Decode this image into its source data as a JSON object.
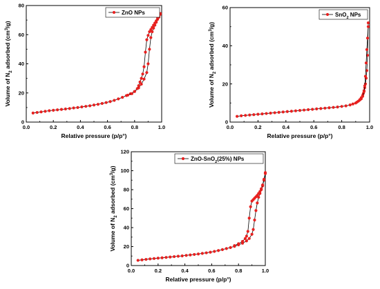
{
  "chart_data": [
    {
      "type": "line",
      "legend": "ZnO NPs",
      "legend_position": "top-right",
      "xlabel": "Relative pressure (p/p°)",
      "ylabel": "Volume of N₂ adsorbed (cm³/g)",
      "xlim": [
        0.0,
        1.0
      ],
      "ylim": [
        0,
        80
      ],
      "xticks": [
        0.0,
        0.2,
        0.4,
        0.6,
        0.8,
        1.0
      ],
      "yticks": [
        0,
        20,
        40,
        60,
        80
      ],
      "xtick_labels": [
        "0.0",
        "0.2",
        "0.4",
        "0.6",
        "0.8",
        "1.0"
      ],
      "ytick_labels": [
        "0",
        "20",
        "40",
        "60",
        "80"
      ],
      "series": [
        {
          "name": "ZnO NPs",
          "color": "#e8201f",
          "adsorption": {
            "x": [
              0.05,
              0.08,
              0.11,
              0.14,
              0.17,
              0.2,
              0.23,
              0.26,
              0.29,
              0.32,
              0.35,
              0.38,
              0.41,
              0.44,
              0.47,
              0.5,
              0.53,
              0.56,
              0.59,
              0.62,
              0.65,
              0.68,
              0.71,
              0.74,
              0.77,
              0.8,
              0.83,
              0.85,
              0.87,
              0.89,
              0.9,
              0.91,
              0.92,
              0.93,
              0.94,
              0.95,
              0.96,
              0.97,
              0.98,
              0.99
            ],
            "y": [
              6.2,
              6.6,
              7.0,
              7.4,
              7.8,
              8.1,
              8.4,
              8.7,
              9.0,
              9.3,
              9.7,
              10.0,
              10.4,
              10.8,
              11.2,
              11.7,
              12.2,
              12.8,
              13.4,
              14.1,
              14.9,
              15.9,
              17.0,
              18.2,
              19.5,
              21.0,
              23.5,
              26.0,
              29.5,
              34.0,
              40.0,
              50.0,
              58.0,
              62.0,
              64.5,
              66.5,
              68.5,
              70.5,
              72.0,
              74.0
            ]
          },
          "desorption": {
            "x": [
              0.99,
              0.98,
              0.97,
              0.96,
              0.95,
              0.94,
              0.93,
              0.92,
              0.91,
              0.9,
              0.89,
              0.88,
              0.87,
              0.86,
              0.85,
              0.84,
              0.83,
              0.82,
              0.8,
              0.78,
              0.75
            ],
            "y": [
              74.5,
              73.0,
              71.5,
              69.5,
              68.0,
              66.5,
              65.0,
              63.5,
              62.0,
              59.5,
              56.5,
              48.0,
              38.0,
              33.0,
              30.0,
              27.5,
              25.0,
              23.0,
              21.0,
              19.5,
              18.5
            ]
          }
        }
      ]
    },
    {
      "type": "line",
      "legend": "SnO₂ NPs",
      "legend_position": "top-right",
      "xlabel": "Relative pressure (p/p°)",
      "ylabel": "Volume of N₂ adsorbed (cm³/g)",
      "xlim": [
        0.0,
        1.0
      ],
      "ylim": [
        0,
        60
      ],
      "xticks": [
        0.0,
        0.2,
        0.4,
        0.6,
        0.8,
        1.0
      ],
      "yticks": [
        0,
        20,
        40,
        60
      ],
      "xtick_labels": [
        "0.0",
        "0.2",
        "0.4",
        "0.6",
        "0.8",
        "1.0"
      ],
      "ytick_labels": [
        "0",
        "20",
        "40",
        "60"
      ],
      "series": [
        {
          "name": "SnO₂ NPs",
          "color": "#e8201f",
          "adsorption": {
            "x": [
              0.05,
              0.08,
              0.11,
              0.14,
              0.17,
              0.2,
              0.23,
              0.26,
              0.29,
              0.32,
              0.35,
              0.38,
              0.41,
              0.44,
              0.47,
              0.5,
              0.53,
              0.56,
              0.59,
              0.62,
              0.65,
              0.68,
              0.71,
              0.74,
              0.77,
              0.8,
              0.83,
              0.86,
              0.88,
              0.9,
              0.91,
              0.92,
              0.93,
              0.94,
              0.95,
              0.955,
              0.96,
              0.965,
              0.97,
              0.975,
              0.98,
              0.985,
              0.99
            ],
            "y": [
              3.0,
              3.3,
              3.5,
              3.7,
              3.9,
              4.1,
              4.3,
              4.5,
              4.7,
              4.9,
              5.1,
              5.3,
              5.5,
              5.7,
              5.9,
              6.1,
              6.3,
              6.5,
              6.7,
              6.9,
              7.1,
              7.3,
              7.5,
              7.7,
              7.9,
              8.2,
              8.5,
              9.0,
              9.5,
              10.0,
              10.5,
              11.0,
              11.8,
              12.8,
              14.0,
              15.0,
              16.5,
              18.0,
              20.0,
              23.0,
              27.0,
              35.0,
              52.0
            ]
          },
          "desorption": {
            "x": [
              0.99,
              0.985,
              0.98,
              0.975,
              0.97,
              0.965,
              0.96,
              0.95,
              0.94,
              0.93
            ],
            "y": [
              50.0,
              44.0,
              38.0,
              31.0,
              24.0,
              19.0,
              16.0,
              13.5,
              12.2,
              11.6
            ]
          }
        }
      ]
    },
    {
      "type": "line",
      "legend": "ZnO-SnO₂(25%) NPs",
      "legend_position": "top-right",
      "xlabel": "Relative pressure (p/p°)",
      "ylabel": "Volume of N₂ adsorbed (cm³/g)",
      "xlim": [
        0.0,
        1.0
      ],
      "ylim": [
        0,
        120
      ],
      "xticks": [
        0.0,
        0.2,
        0.4,
        0.6,
        0.8,
        1.0
      ],
      "yticks": [
        0,
        20,
        40,
        60,
        80,
        100,
        120
      ],
      "xtick_labels": [
        "0.0",
        "0.2",
        "0.4",
        "0.6",
        "0.8",
        "1.0"
      ],
      "ytick_labels": [
        "0",
        "20",
        "40",
        "60",
        "80",
        "100",
        "120"
      ],
      "series": [
        {
          "name": "ZnO-SnO₂(25%) NPs",
          "color": "#e8201f",
          "adsorption": {
            "x": [
              0.05,
              0.08,
              0.11,
              0.14,
              0.17,
              0.2,
              0.23,
              0.26,
              0.29,
              0.32,
              0.35,
              0.38,
              0.41,
              0.44,
              0.47,
              0.5,
              0.53,
              0.56,
              0.59,
              0.62,
              0.65,
              0.68,
              0.71,
              0.74,
              0.77,
              0.8,
              0.83,
              0.86,
              0.88,
              0.9,
              0.91,
              0.92,
              0.93,
              0.94,
              0.95,
              0.96,
              0.97,
              0.98,
              0.99,
              1.0
            ],
            "y": [
              5.5,
              6.0,
              6.5,
              7.0,
              7.4,
              7.8,
              8.2,
              8.6,
              9.0,
              9.4,
              9.8,
              10.2,
              10.7,
              11.2,
              11.7,
              12.2,
              12.8,
              13.4,
              14.1,
              14.9,
              15.8,
              16.8,
              17.9,
              19.0,
              20.3,
              21.8,
              23.5,
              26.0,
              28.5,
              33.0,
              38.0,
              48.0,
              58.0,
              66.0,
              72.0,
              76.0,
              80.0,
              84.0,
              90.0,
              98.0
            ]
          },
          "desorption": {
            "x": [
              1.0,
              0.99,
              0.98,
              0.97,
              0.96,
              0.95,
              0.94,
              0.93,
              0.92,
              0.91,
              0.9,
              0.89,
              0.88,
              0.87,
              0.86,
              0.85,
              0.83,
              0.8,
              0.77
            ],
            "y": [
              97.0,
              91.0,
              85.0,
              81.0,
              78.0,
              76.0,
              74.0,
              72.5,
              71.0,
              69.5,
              68.0,
              62.0,
              50.0,
              36.0,
              31.0,
              28.5,
              25.5,
              23.0,
              21.0
            ]
          }
        }
      ]
    }
  ]
}
